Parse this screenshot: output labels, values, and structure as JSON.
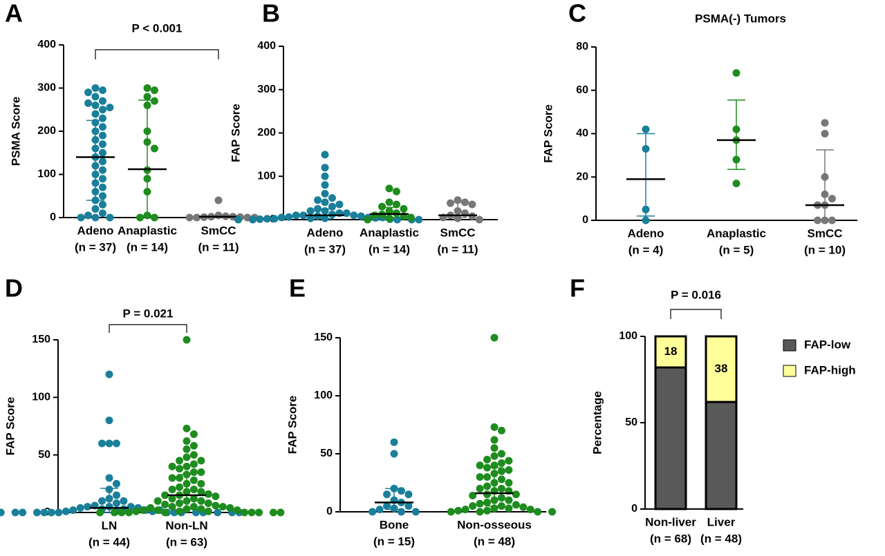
{
  "chart_data": [
    {
      "type": "strip",
      "panel": "A",
      "ylabel": "PSMA Score",
      "annotation": "P < 0.001",
      "ylim": [
        0,
        400
      ],
      "yticks": [
        0,
        100,
        200,
        300,
        400
      ],
      "groups": [
        {
          "name": "Adeno",
          "n_label": "(n = 37)",
          "color": "#1a7f9a",
          "median": 140,
          "q1": 40,
          "q3": 225,
          "values": [
            300,
            295,
            290,
            280,
            270,
            265,
            260,
            255,
            250,
            240,
            230,
            220,
            210,
            200,
            190,
            180,
            170,
            160,
            150,
            140,
            130,
            120,
            110,
            100,
            90,
            80,
            70,
            60,
            50,
            40,
            30,
            20,
            10,
            5,
            0,
            0,
            0
          ]
        },
        {
          "name": "Anaplastic",
          "n_label": "(n = 14)",
          "color": "#1e8c1e",
          "median": 112,
          "q1": 5,
          "q3": 272,
          "values": [
            300,
            295,
            280,
            270,
            260,
            200,
            175,
            160,
            110,
            90,
            60,
            5,
            0,
            0
          ]
        },
        {
          "name": "SmCC",
          "n_label": "(n = 11)",
          "color": "#777777",
          "median": 2,
          "q1": 0,
          "q3": 5,
          "values": [
            40,
            5,
            3,
            2,
            2,
            1,
            1,
            0,
            0,
            0,
            0
          ]
        }
      ]
    },
    {
      "type": "strip",
      "panel": "B",
      "ylabel": "FAP Score",
      "ylim": [
        0,
        400
      ],
      "yticks": [
        0,
        100,
        200,
        300,
        400
      ],
      "groups": [
        {
          "name": "Adeno",
          "n_label": "(n = 37)",
          "color": "#1a7f9a",
          "median": 10,
          "q1": 2,
          "q3": 25,
          "values": [
            150,
            120,
            100,
            80,
            60,
            50,
            45,
            40,
            35,
            30,
            25,
            20,
            20,
            15,
            15,
            12,
            10,
            10,
            10,
            8,
            8,
            6,
            5,
            5,
            5,
            4,
            3,
            3,
            2,
            2,
            1,
            1,
            0,
            0,
            0,
            0,
            0
          ]
        },
        {
          "name": "Anaplastic",
          "n_label": "(n = 14)",
          "color": "#1e8c1e",
          "median": 13,
          "q1": 5,
          "q3": 28,
          "values": [
            72,
            65,
            40,
            35,
            30,
            25,
            20,
            15,
            12,
            10,
            8,
            5,
            3,
            0
          ]
        },
        {
          "name": "SmCC",
          "n_label": "(n = 11)",
          "color": "#777777",
          "median": 10,
          "q1": 5,
          "q3": 40,
          "values": [
            45,
            40,
            38,
            35,
            20,
            15,
            10,
            8,
            5,
            3,
            0
          ]
        }
      ]
    },
    {
      "type": "strip",
      "panel": "C",
      "title": "PSMA(-) Tumors",
      "ylabel": "FAP Score",
      "ylim": [
        0,
        80
      ],
      "yticks": [
        0,
        20,
        40,
        60,
        80
      ],
      "groups": [
        {
          "name": "Adeno",
          "n_label": "(n = 4)",
          "color": "#1a7f9a",
          "median": 19,
          "q1": 2,
          "q3": 40,
          "values": [
            42,
            33,
            5,
            0
          ]
        },
        {
          "name": "Anaplastic",
          "n_label": "(n = 5)",
          "color": "#1e8c1e",
          "median": 37,
          "q1": 23.5,
          "q3": 55.5,
          "values": [
            68,
            42,
            37,
            28,
            17
          ]
        },
        {
          "name": "SmCC",
          "n_label": "(n = 10)",
          "color": "#777777",
          "median": 7,
          "q1": 0,
          "q3": 32.5,
          "values": [
            45,
            40,
            20,
            12,
            10,
            7,
            7,
            0,
            0,
            0
          ]
        }
      ]
    },
    {
      "type": "strip",
      "panel": "D",
      "ylabel": "FAP Score",
      "annotation": "P = 0.021",
      "ylim": [
        0,
        150
      ],
      "yticks": [
        0,
        50,
        100,
        150
      ],
      "groups": [
        {
          "name": "LN",
          "n_label": "(n = 44)",
          "color": "#1a7f9a",
          "median": 4,
          "q1": 0,
          "q3": 21,
          "values": [
            120,
            80,
            60,
            60,
            60,
            30,
            25,
            20,
            15,
            12,
            10,
            10,
            8,
            6,
            5,
            5,
            5,
            4,
            4,
            3,
            3,
            2,
            2,
            2,
            1,
            1,
            1,
            0,
            0,
            0,
            0,
            0,
            0,
            0,
            0,
            0,
            0,
            0,
            0,
            0,
            0,
            0,
            0,
            0
          ]
        },
        {
          "name": "Non-LN",
          "n_label": "(n = 63)",
          "color": "#1e8c1e",
          "median": 15,
          "q1": 3,
          "q3": 33,
          "values": [
            150,
            73,
            68,
            62,
            58,
            55,
            50,
            48,
            45,
            45,
            42,
            40,
            40,
            38,
            35,
            35,
            33,
            30,
            30,
            28,
            25,
            25,
            22,
            20,
            20,
            18,
            18,
            16,
            15,
            15,
            14,
            12,
            12,
            10,
            10,
            10,
            8,
            8,
            7,
            6,
            5,
            5,
            5,
            4,
            4,
            3,
            3,
            2,
            2,
            2,
            1,
            1,
            1,
            0,
            0,
            0,
            0,
            0,
            0,
            0,
            0,
            0,
            0
          ]
        }
      ]
    },
    {
      "type": "strip",
      "panel": "E",
      "ylabel": "FAP Score",
      "ylim": [
        0,
        150
      ],
      "yticks": [
        0,
        50,
        100,
        150
      ],
      "groups": [
        {
          "name": "Bone",
          "n_label": "(n = 15)",
          "color": "#1a7f9a",
          "median": 8,
          "q1": 2,
          "q3": 20,
          "values": [
            60,
            50,
            20,
            18,
            15,
            15,
            10,
            8,
            5,
            5,
            3,
            2,
            0,
            0,
            0
          ]
        },
        {
          "name": "Non-osseous",
          "n_label": "(n = 48)",
          "color": "#1e8c1e",
          "median": 16,
          "q1": 5,
          "q3": 38,
          "values": [
            150,
            73,
            70,
            62,
            55,
            50,
            48,
            45,
            44,
            42,
            40,
            40,
            38,
            36,
            35,
            33,
            30,
            30,
            28,
            25,
            25,
            22,
            20,
            20,
            18,
            18,
            15,
            15,
            14,
            12,
            10,
            10,
            8,
            7,
            6,
            5,
            5,
            4,
            3,
            3,
            2,
            2,
            1,
            1,
            0,
            0,
            0,
            0
          ]
        }
      ]
    },
    {
      "type": "stacked-bar",
      "panel": "F",
      "ylabel": "Percentage",
      "annotation": "P = 0.016",
      "ylim": [
        0,
        100
      ],
      "yticks": [
        0,
        50,
        100
      ],
      "categories": [
        "Non-liver",
        "Liver"
      ],
      "n_labels": [
        "(n = 68)",
        "(n = 48)"
      ],
      "series": [
        {
          "name": "FAP-low",
          "color": "#595959",
          "values": [
            82,
            62
          ]
        },
        {
          "name": "FAP-high",
          "color": "#ffff99",
          "values": [
            18,
            38
          ]
        }
      ]
    }
  ]
}
